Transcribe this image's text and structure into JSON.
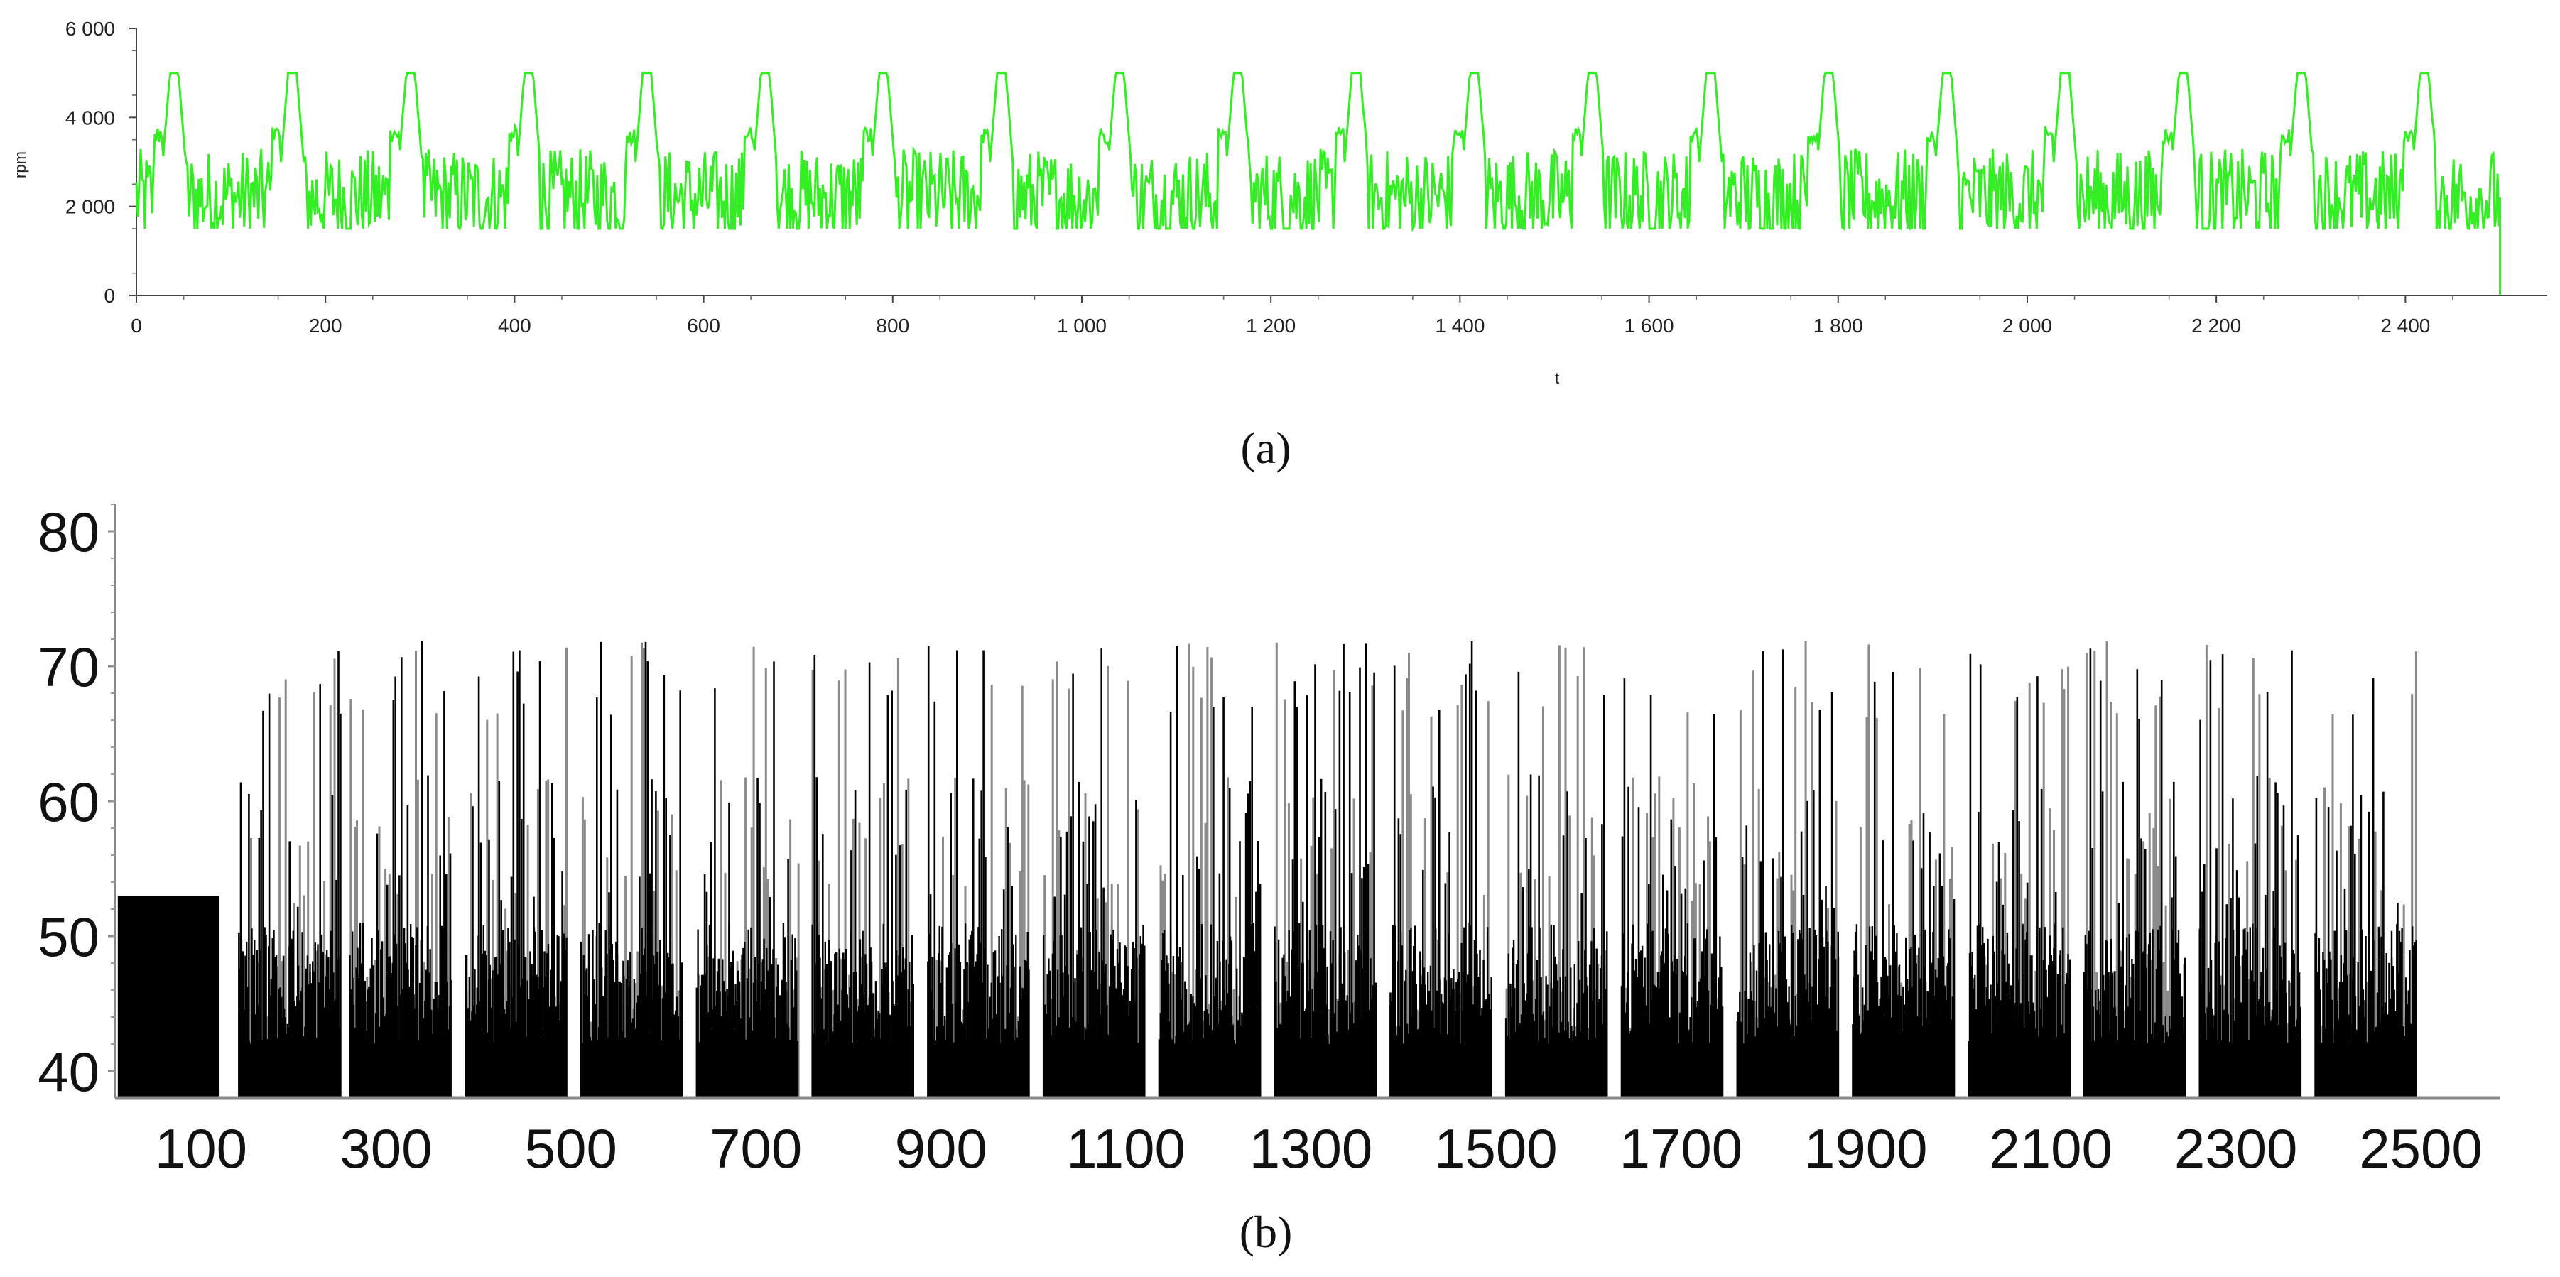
{
  "chart_data": [
    {
      "type": "line",
      "panel": "a",
      "ylabel": "rpm",
      "xlabel": "t",
      "xlim": [
        0,
        2550
      ],
      "ylim": [
        0,
        6000
      ],
      "x_ticks": [
        "0",
        "200",
        "400",
        "600",
        "800",
        "1 000",
        "1 200",
        "1 400",
        "1 600",
        "1 800",
        "2 000",
        "2 200",
        "2 400"
      ],
      "x_tick_values": [
        0,
        200,
        400,
        600,
        800,
        1000,
        1200,
        1400,
        1600,
        1800,
        2000,
        2200,
        2400
      ],
      "y_ticks": [
        "0",
        "2 000",
        "4 000",
        "6 000"
      ],
      "y_tick_values": [
        0,
        2000,
        4000,
        6000
      ],
      "grid": false,
      "series": [
        {
          "color": "#33ee22",
          "peak_x": [
            40,
            165,
            290,
            415,
            540,
            665,
            790,
            915,
            1040,
            1165,
            1290,
            1415,
            1540,
            1665,
            1790,
            1915,
            2040,
            2165,
            2290,
            2420
          ],
          "peak_value": 5000,
          "band_low": 1500,
          "band_high": 3500,
          "typical_value": 2200,
          "end_x": 2500,
          "end_value": 0
        }
      ]
    },
    {
      "type": "bar",
      "panel": "b",
      "xlim": [
        0,
        2550
      ],
      "ylim": [
        38,
        82
      ],
      "x_ticks": [
        "100",
        "300",
        "500",
        "700",
        "900",
        "1100",
        "1300",
        "1500",
        "1700",
        "1900",
        "2100",
        "2300",
        "2500"
      ],
      "x_tick_values": [
        100,
        300,
        500,
        700,
        900,
        1100,
        1300,
        1500,
        1700,
        1900,
        2100,
        2300,
        2500
      ],
      "y_ticks": [
        "40",
        "50",
        "60",
        "70",
        "80"
      ],
      "y_tick_values": [
        40,
        50,
        60,
        70,
        80
      ],
      "grid": false,
      "series": [
        {
          "color": "#000000",
          "secondary_color": "#8a8a8a",
          "idle_range": [
            0,
            110
          ],
          "idle_value": 53,
          "cycle_start_x": [
            140,
            260,
            385,
            510,
            635,
            760,
            885,
            1010,
            1135,
            1260,
            1385,
            1510,
            1635,
            1760,
            1885,
            2010,
            2135,
            2260,
            2385
          ],
          "cycle_peak_value": 72,
          "cycle_base_value": 45,
          "end_x": 2500
        }
      ]
    }
  ],
  "captions": {
    "a": "(a)",
    "b": "(b)"
  }
}
